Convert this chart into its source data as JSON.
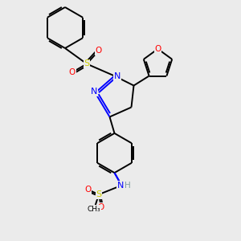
{
  "bg_color": "#ebebeb",
  "bond_color": "#000000",
  "N_color": "#0000ff",
  "O_color": "#ff0000",
  "S_color": "#cccc00",
  "H_color": "#7f9f9f",
  "line_width": 1.4,
  "figsize": [
    3.0,
    3.0
  ],
  "dpi": 100,
  "xlim": [
    0,
    10
  ],
  "ylim": [
    0,
    10
  ]
}
